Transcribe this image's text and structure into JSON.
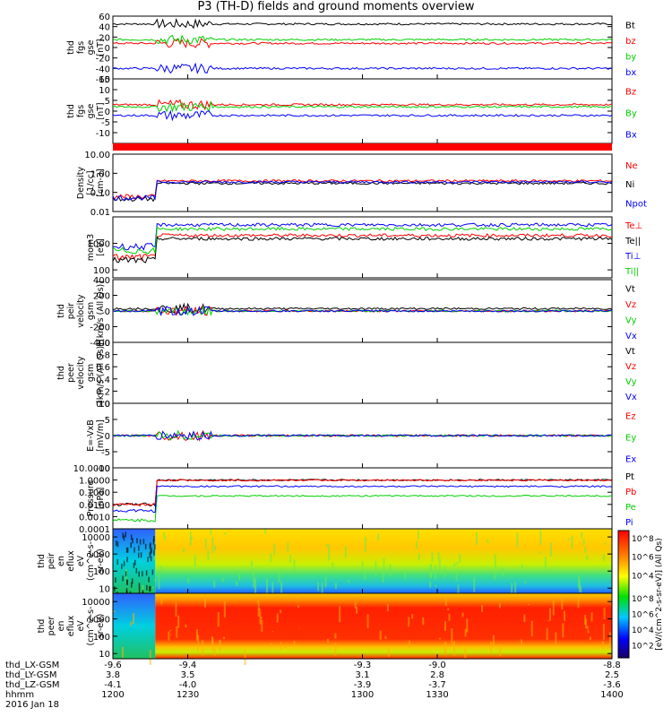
{
  "title": "P3 (TH-D) fields and ground moments overview",
  "colors": {
    "black": "#000000",
    "red": "#ff0000",
    "green": "#00d000",
    "blue": "#0000ff"
  },
  "footer": {
    "rows": [
      {
        "label": "thd_LX-GSM",
        "values": [
          "-9.6",
          "-9.4",
          "-9.3",
          "-9.0",
          "-8.8"
        ]
      },
      {
        "label": "thd_LY-GSM",
        "values": [
          "3.8",
          "3.5",
          "3.1",
          "2.8",
          "2.5"
        ]
      },
      {
        "label": "thd_LZ-GSM",
        "values": [
          "-4.1",
          "-4.0",
          "-3.9",
          "-3.7",
          "-3.6"
        ]
      },
      {
        "label": "hhmm",
        "values": [
          "1200",
          "1230",
          "1300",
          "1330",
          "1400"
        ]
      }
    ],
    "date": "2016 Jan 18"
  },
  "colorbar": {
    "label": "[eV/(cm^2-s-sr-eV)] (All Qs)",
    "ticks_top": [
      "10^8",
      "10^6",
      "10^4"
    ],
    "ticks_bottom": [
      "10^8",
      "10^6",
      "10^4",
      "10^2"
    ]
  },
  "chart_data": [
    {
      "type": "line",
      "ylabel": [
        "thd",
        "fgs",
        "gse",
        "[nT]"
      ],
      "ylim": [
        -60,
        60
      ],
      "ticks": [
        "60",
        "40",
        "20",
        "0",
        "-20",
        "-40",
        "-60"
      ],
      "series": [
        {
          "name": "Bt",
          "color": "black",
          "level": 45
        },
        {
          "name": "bz",
          "color": "red",
          "level": 8
        },
        {
          "name": "by",
          "color": "green",
          "level": 15
        },
        {
          "name": "bx",
          "color": "blue",
          "level": -40
        }
      ]
    },
    {
      "type": "line",
      "ylabel": [
        "thd",
        "fgs",
        "gse",
        "[nT]"
      ],
      "ylim": [
        -15,
        15
      ],
      "ticks": [
        "15",
        "10",
        "5",
        "0",
        "-5",
        "-10"
      ],
      "series": [
        {
          "name": "Bz",
          "color": "red",
          "level": 3
        },
        {
          "name": "By",
          "color": "green",
          "level": 2
        },
        {
          "name": "Bx",
          "color": "blue",
          "level": -2
        }
      ]
    },
    {
      "type": "line",
      "ylabel": [
        "Density",
        "[1/cc]",
        "[cm-3]"
      ],
      "log": true,
      "ylim": [
        0.01,
        10
      ],
      "ticks": [
        "10.00",
        "1.00",
        "0.10",
        "0.01"
      ],
      "series": [
        {
          "name": "Ne",
          "color": "red",
          "level": 0.4
        },
        {
          "name": "Ni",
          "color": "black",
          "level": 0.3
        },
        {
          "name": "Npot",
          "color": "blue",
          "level": 0.35
        }
      ]
    },
    {
      "type": "line",
      "ylabel": [
        "mom3",
        "[eV]"
      ],
      "log": true,
      "ylim": [
        50,
        10000
      ],
      "ticks": [
        "1000",
        "100"
      ],
      "series": [
        {
          "name": "Te⊥",
          "color": "red",
          "level": 2000
        },
        {
          "name": "Te||",
          "color": "black",
          "level": 1500
        },
        {
          "name": "Ti⊥",
          "color": "blue",
          "level": 5000
        },
        {
          "name": "Ti||",
          "color": "green",
          "level": 3500
        }
      ]
    },
    {
      "type": "line",
      "ylabel": [
        "thd",
        "peir",
        "velocity",
        "gsm",
        "[km/s (All Qs)]"
      ],
      "ylim": [
        -400,
        400
      ],
      "ticks": [
        "400",
        "200",
        "0",
        "-200",
        "-400"
      ],
      "series": [
        {
          "name": "Vt",
          "color": "black",
          "level": 30
        },
        {
          "name": "Vz",
          "color": "red",
          "level": 0
        },
        {
          "name": "Vy",
          "color": "green",
          "level": 0
        },
        {
          "name": "Vx",
          "color": "blue",
          "level": 0
        }
      ]
    },
    {
      "type": "line",
      "ylabel": [
        "thd",
        "peer",
        "velocity",
        "gsm",
        "[km/s (All Qs)]"
      ],
      "ylim": [
        0,
        1
      ],
      "ticks": [
        "1.0",
        "0.8",
        "0.6",
        "0.4",
        "0.2",
        "0.0"
      ],
      "series": [
        {
          "name": "Vt",
          "color": "black"
        },
        {
          "name": "Vz",
          "color": "red"
        },
        {
          "name": "Vy",
          "color": "green"
        },
        {
          "name": "Vx",
          "color": "blue"
        }
      ]
    },
    {
      "type": "line",
      "ylabel": [
        "E=-VxB",
        "[mV/m]"
      ],
      "ylim": [
        -10,
        10
      ],
      "ticks": [
        "10",
        "5",
        "0",
        "-5",
        "-10"
      ],
      "series": [
        {
          "name": "Ez",
          "color": "red",
          "level": 0
        },
        {
          "name": "Ey",
          "color": "green",
          "level": 0
        },
        {
          "name": "Ex",
          "color": "blue",
          "level": 0
        }
      ]
    },
    {
      "type": "line",
      "ylabel": [
        "Pressure",
        "[nPa]"
      ],
      "log": true,
      "ylim": [
        0.0001,
        10
      ],
      "ticks": [
        "10.0000",
        "1.0000",
        "0.1000",
        "0.0100",
        "0.0010",
        "0.0001"
      ],
      "series": [
        {
          "name": "Pt",
          "color": "black",
          "level": 1.0
        },
        {
          "name": "Pb",
          "color": "red",
          "level": 0.95
        },
        {
          "name": "Pe",
          "color": "green",
          "level": 0.05
        },
        {
          "name": "Pi",
          "color": "blue",
          "level": 0.3
        }
      ]
    },
    {
      "type": "heatmap",
      "ylabel": [
        "thd",
        "peir",
        "en",
        "eflux",
        "eV",
        "(cm^2-s-",
        "sr-eV)"
      ],
      "log": true,
      "ylim": [
        5,
        30000
      ],
      "ticks": [
        "10000",
        "1000",
        "100",
        "10"
      ]
    },
    {
      "type": "heatmap",
      "ylabel": [
        "thd",
        "peer",
        "en",
        "eflux",
        "eV",
        "(cm^2-s-",
        "sr-eV)"
      ],
      "log": true,
      "ylim": [
        5,
        30000
      ],
      "ticks": [
        "10000",
        "1000",
        "100",
        "10"
      ]
    }
  ],
  "time_axis": {
    "xlim": [
      1200,
      1400
    ],
    "tick_minutes": [
      1200,
      1230,
      1300,
      1330,
      1400
    ]
  }
}
